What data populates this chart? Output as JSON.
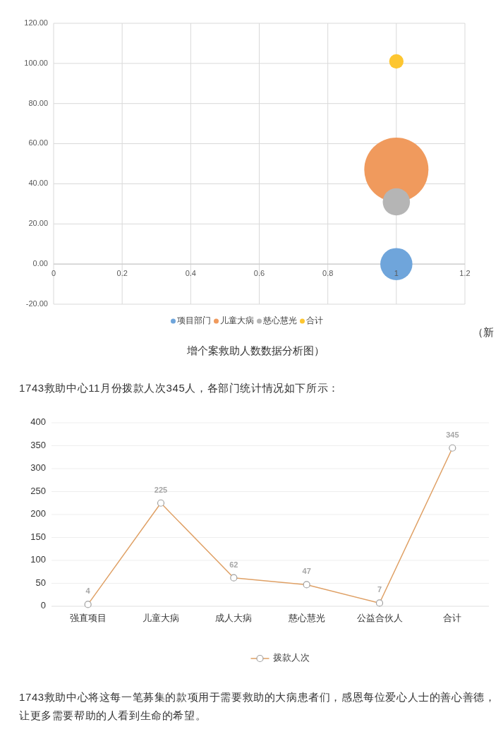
{
  "chart_data": [
    {
      "type": "bubble",
      "x": [
        1
      ],
      "series": [
        {
          "name": "项目部门",
          "color": "#6fa5db",
          "values": [
            0
          ],
          "sizes": [
            0.25
          ]
        },
        {
          "name": "儿童大病",
          "color": "#f09a5d",
          "values": [
            47
          ],
          "sizes": [
            1
          ]
        },
        {
          "name": "慈心慧光",
          "color": "#b5b5b5",
          "values": [
            31
          ],
          "sizes": [
            0.18
          ]
        },
        {
          "name": "合计",
          "color": "#fdc630",
          "values": [
            101
          ],
          "sizes": [
            0.05
          ]
        }
      ],
      "xlim": [
        0,
        1.2
      ],
      "xticks": [
        0,
        0.2,
        0.4,
        0.6,
        0.8,
        1,
        1.2
      ],
      "ylim": [
        -20,
        120
      ],
      "yticks": [
        {
          "value": -20,
          "label": "-20.00"
        },
        {
          "value": 0,
          "label": "0.00"
        },
        {
          "value": 20,
          "label": "20.00"
        },
        {
          "value": 40,
          "label": "40.00"
        },
        {
          "value": 60,
          "label": "60.00"
        },
        {
          "value": 80,
          "label": "80.00"
        },
        {
          "value": 100,
          "label": "100.00"
        },
        {
          "value": 120,
          "label": "120.00"
        }
      ],
      "grid": true,
      "legend": "bottom",
      "annotations": [
        "（新",
        "增个案救助人数数据分析图）"
      ]
    },
    {
      "type": "line",
      "title": "1743救助中心11月份拨款人次345人，各部门统计情况如下所示：",
      "categories": [
        "强直项目",
        "儿童大病",
        "成人大病",
        "慈心慧光",
        "公益合伙人",
        "合计"
      ],
      "series": [
        {
          "name": "拨款人次",
          "color": "#dfa065",
          "values": [
            4,
            225,
            62,
            47,
            7,
            345
          ]
        }
      ],
      "ylim": [
        0,
        400
      ],
      "yticks": [
        0,
        50,
        100,
        150,
        200,
        250,
        300,
        350,
        400
      ],
      "grid": "y",
      "legend": "bottom",
      "marker": "circle",
      "data_labels": true,
      "annotations": [
        "1743救助中心将这每一笔募集的款项用于需要救助的大病患者们，感恩每位爱心人士的善心善德，让更多需要帮助的人看到生命的希望。"
      ]
    }
  ]
}
